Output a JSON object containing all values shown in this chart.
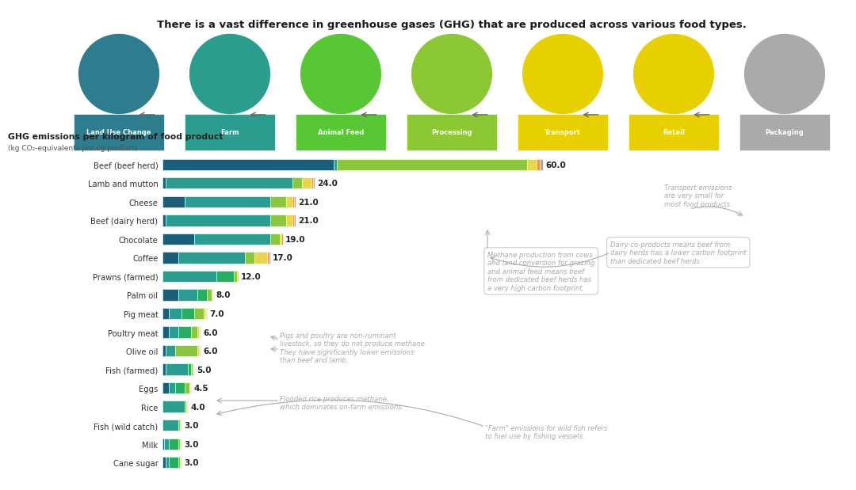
{
  "title": "There is a vast difference in greenhouse gases (GHG) that are produced across various food types.",
  "chart_title": "GHG emissions per kilogram of food product",
  "chart_subtitle": "(kg CO₂-equivalents per kg product)",
  "categories": [
    "Beef (beef herd)",
    "Lamb and mutton",
    "Cheese",
    "Beef (dairy herd)",
    "Chocolate",
    "Coffee",
    "Prawns (farmed)",
    "Palm oil",
    "Pig meat",
    "Poultry meat",
    "Olive oil",
    "Fish (farmed)",
    "Eggs",
    "Rice",
    "Fish (wild catch)",
    "Milk",
    "Cane sugar"
  ],
  "totals": [
    60.0,
    24.0,
    21.0,
    21.0,
    19.0,
    17.0,
    12.0,
    8.0,
    7.0,
    6.0,
    6.0,
    5.0,
    4.5,
    4.0,
    3.0,
    3.0,
    3.0
  ],
  "segments": [
    [
      27.0,
      0.5,
      0.0,
      30.0,
      1.5,
      0.5,
      0.5
    ],
    [
      0.5,
      20.0,
      0.0,
      1.5,
      1.5,
      0.3,
      0.2
    ],
    [
      3.5,
      13.5,
      0.0,
      2.5,
      1.0,
      0.3,
      0.2
    ],
    [
      0.5,
      16.5,
      0.0,
      2.5,
      1.0,
      0.3,
      0.2
    ],
    [
      5.0,
      12.0,
      0.0,
      1.5,
      0.3,
      0.15,
      0.05
    ],
    [
      2.5,
      10.5,
      0.0,
      1.5,
      2.0,
      0.3,
      0.2
    ],
    [
      0.0,
      8.5,
      2.8,
      0.5,
      0.15,
      0.05,
      0.0
    ],
    [
      2.5,
      3.0,
      1.5,
      0.7,
      0.2,
      0.08,
      0.02
    ],
    [
      1.0,
      2.0,
      2.0,
      1.5,
      0.3,
      0.12,
      0.08
    ],
    [
      1.0,
      1.5,
      2.0,
      1.0,
      0.3,
      0.1,
      0.1
    ],
    [
      0.5,
      1.5,
      0.0,
      3.5,
      0.3,
      0.1,
      0.1
    ],
    [
      0.5,
      3.5,
      0.5,
      0.3,
      0.1,
      0.08,
      0.02
    ],
    [
      1.0,
      1.0,
      1.5,
      0.7,
      0.2,
      0.07,
      0.03
    ],
    [
      0.0,
      3.5,
      0.0,
      0.3,
      0.1,
      0.07,
      0.03
    ],
    [
      0.0,
      2.5,
      0.0,
      0.3,
      0.1,
      0.07,
      0.03
    ],
    [
      0.2,
      0.8,
      1.5,
      0.3,
      0.1,
      0.07,
      0.03
    ],
    [
      0.5,
      0.5,
      1.5,
      0.3,
      0.1,
      0.07,
      0.03
    ]
  ],
  "seg_colors": [
    "#1a5f7a",
    "#2a9d8f",
    "#27ae60",
    "#8cc63f",
    "#e8d44d",
    "#e8954a",
    "#aaaaaa"
  ],
  "stage_labels": [
    "Land Use Change",
    "Farm",
    "Animal Feed",
    "Processing",
    "Transport",
    "Retail",
    "Packaging"
  ],
  "stage_bg_colors": [
    "#2e7d8e",
    "#2a9d8f",
    "#57c834",
    "#8bc834",
    "#e8d000",
    "#e8d000",
    "#aaaaaa"
  ],
  "bg_color": "#ffffff",
  "ann_color": "#aaaaaa",
  "ann1_text": "Methane production from cows\nand land conversion for grazing\nand animal feed means beef\nfrom dedicated beef herds has\na very high carbon footprint.",
  "ann2_text": "Dairy co-products means beef from\ndairy herds has a lower carbon footprint\nthan dedicated beef herds.",
  "ann3_text": "Pigs and poultry are non-ruminant\nlivestock, so they do not produce methane.\nThey have significantly lower emissions\nthan beef and lamb.",
  "ann4_text": "Flooded rice produces methane,\nwhich dominates on-farm emissions.",
  "ann5_text": "\"Farm\" emissions for wild fish refers\nto fuel use by fishing vessels.",
  "ann6_text": "Transport emissions\nare very small for\nmost food products."
}
